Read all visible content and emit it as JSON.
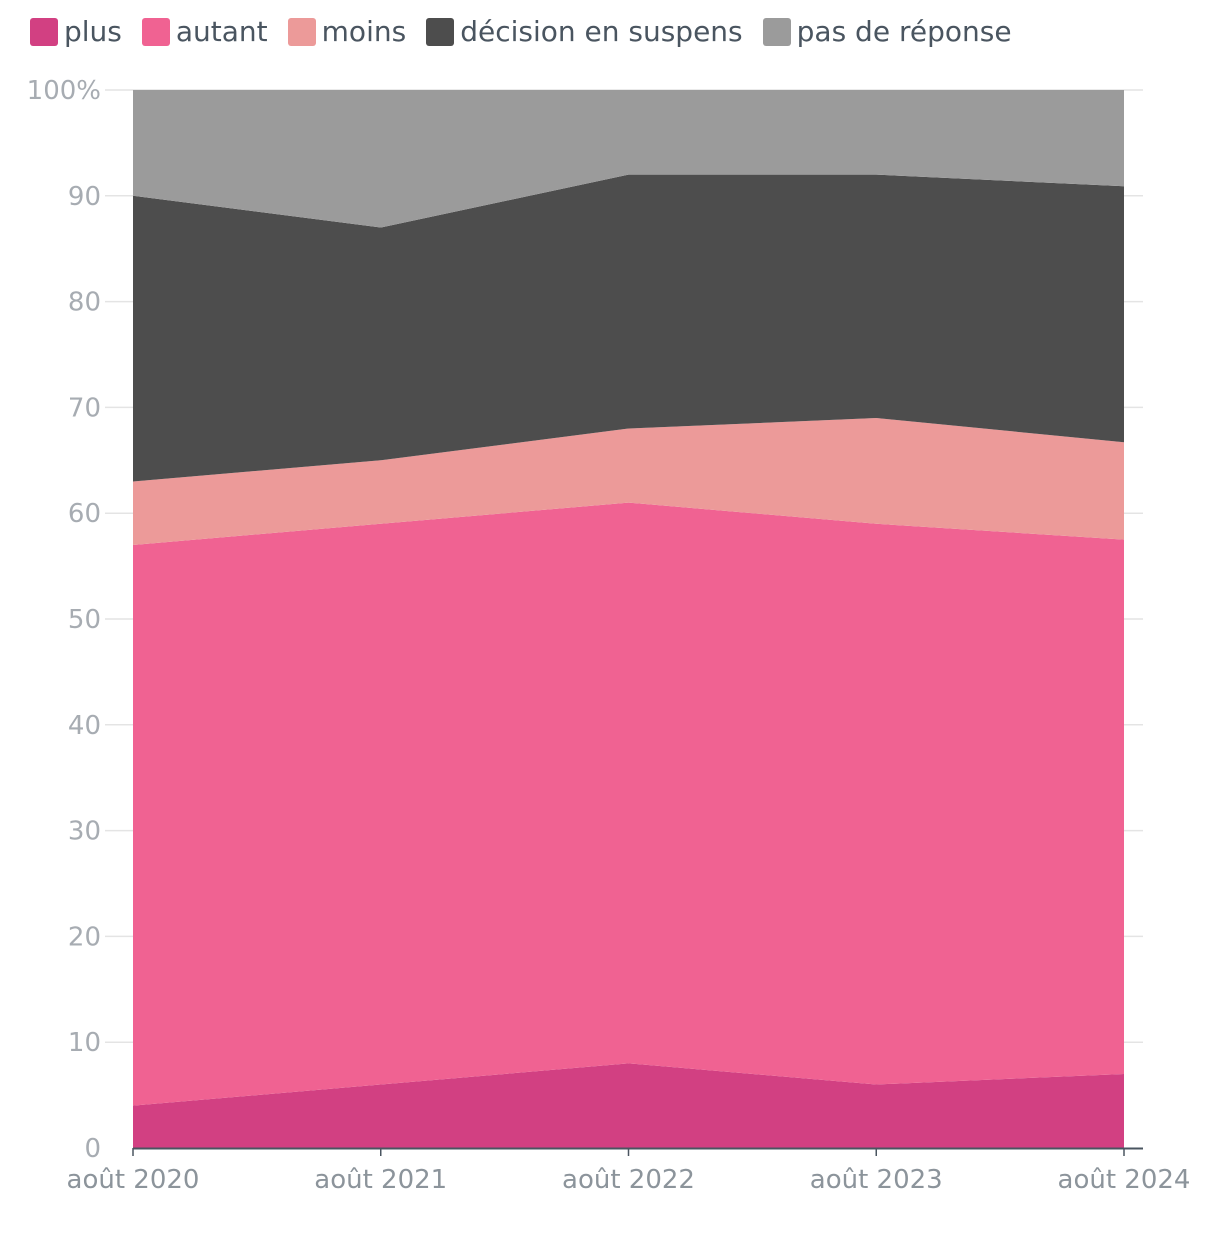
{
  "chart_data": {
    "type": "area",
    "stacked": true,
    "categories": [
      "août 2020",
      "août 2021",
      "août 2022",
      "août 2023",
      "août 2024"
    ],
    "series": [
      {
        "name": "plus",
        "color": "#d24082",
        "values": [
          4,
          6,
          8,
          6,
          7
        ]
      },
      {
        "name": "autant",
        "color": "#f06292",
        "values": [
          53,
          53,
          53,
          53,
          50.5
        ]
      },
      {
        "name": "moins",
        "color": "#ec9a99",
        "values": [
          6,
          6,
          7,
          10,
          9.2
        ]
      },
      {
        "name": "décision en suspens",
        "color": "#4d4d4d",
        "values": [
          27,
          22,
          24,
          23,
          24.2
        ]
      },
      {
        "name": "pas de réponse",
        "color": "#9b9b9b",
        "values": [
          10,
          13,
          8,
          8,
          9.1
        ]
      }
    ],
    "yticks": [
      "0",
      "10",
      "20",
      "30",
      "40",
      "50",
      "60",
      "70",
      "80",
      "90",
      "100%"
    ],
    "ylim": [
      0,
      100
    ],
    "legend_position": "top-left",
    "title": "",
    "xlabel": "",
    "ylabel": ""
  }
}
